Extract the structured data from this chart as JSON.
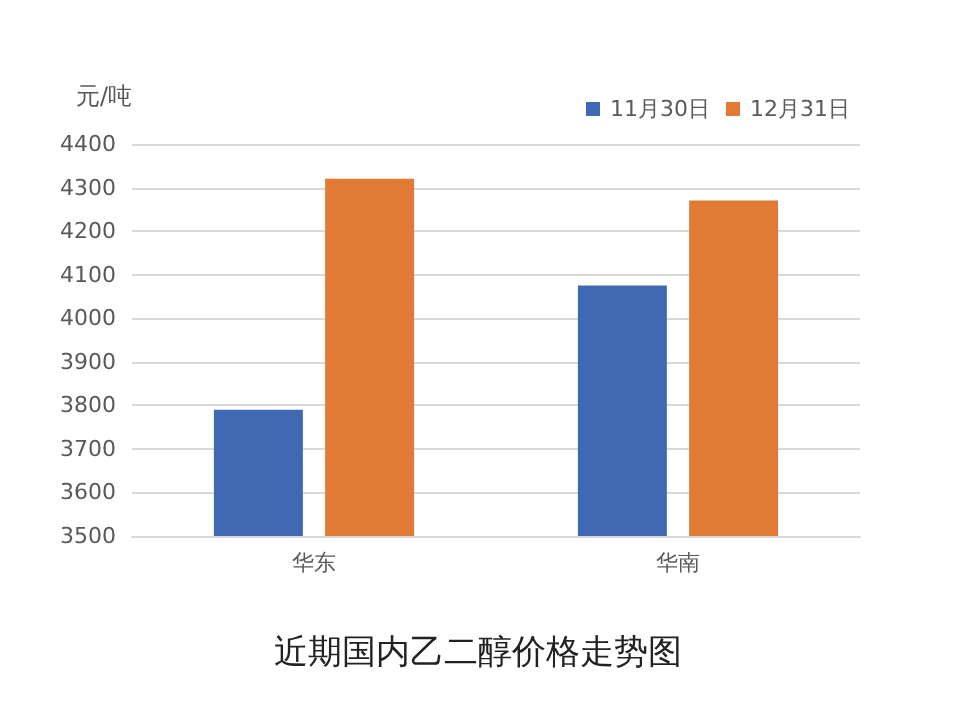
{
  "chart_data": {
    "type": "bar",
    "title": "近期国内乙二醇价格走势图",
    "ylabel": "元/吨",
    "categories": [
      "华东",
      "华南"
    ],
    "series": [
      {
        "name": "11月30日",
        "color": "#4069b4",
        "values": [
          3790,
          4075
        ]
      },
      {
        "name": "12月31日",
        "color": "#e07a35",
        "values": [
          4320,
          4270
        ]
      }
    ],
    "ylim": [
      3500,
      4400
    ],
    "yticks": [
      3500,
      3600,
      3700,
      3800,
      3900,
      4000,
      4100,
      4200,
      4300,
      4400
    ],
    "grid": "y",
    "legend": "top right"
  }
}
